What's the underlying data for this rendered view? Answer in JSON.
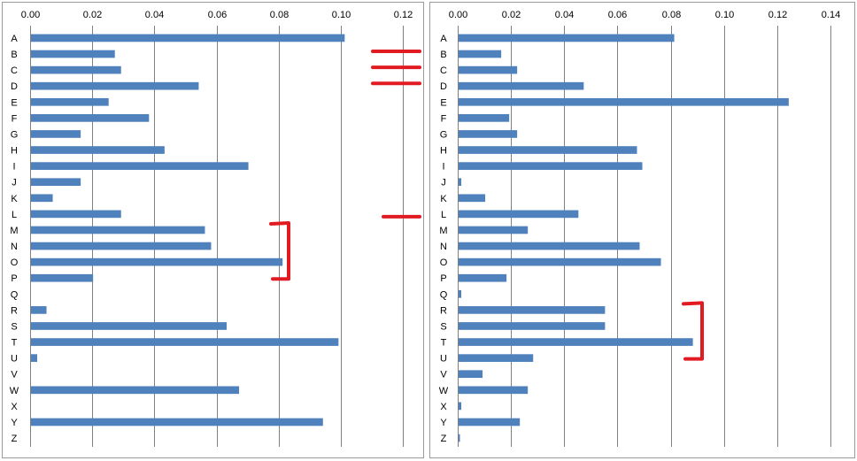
{
  "colors": {
    "bar": "#4f81bd",
    "annotation": "#e11b22",
    "grid": "#808080"
  },
  "chart_data": [
    {
      "type": "bar",
      "orientation": "horizontal",
      "categories": [
        "A",
        "B",
        "C",
        "D",
        "E",
        "F",
        "G",
        "H",
        "I",
        "J",
        "K",
        "L",
        "M",
        "N",
        "O",
        "P",
        "Q",
        "R",
        "S",
        "T",
        "U",
        "V",
        "W",
        "X",
        "Y",
        "Z"
      ],
      "values": [
        0.101,
        0.027,
        0.029,
        0.054,
        0.025,
        0.038,
        0.016,
        0.043,
        0.07,
        0.016,
        0.007,
        0.029,
        0.056,
        0.058,
        0.081,
        0.02,
        0.0,
        0.005,
        0.063,
        0.099,
        0.002,
        0.0,
        0.067,
        0.0,
        0.094,
        0.0
      ],
      "xlim": [
        0,
        0.12
      ],
      "ticks": [
        "0.00",
        "0.02",
        "0.04",
        "0.06",
        "0.08",
        "0.10",
        "0.12"
      ],
      "grid": true,
      "bracket": {
        "from": "M",
        "to": "P"
      }
    },
    {
      "type": "bar",
      "orientation": "horizontal",
      "categories": [
        "A",
        "B",
        "C",
        "D",
        "E",
        "F",
        "G",
        "H",
        "I",
        "J",
        "K",
        "L",
        "M",
        "N",
        "O",
        "P",
        "Q",
        "R",
        "S",
        "T",
        "U",
        "V",
        "W",
        "X",
        "Y",
        "Z"
      ],
      "values": [
        0.081,
        0.016,
        0.022,
        0.047,
        0.124,
        0.019,
        0.022,
        0.067,
        0.069,
        0.001,
        0.01,
        0.045,
        0.026,
        0.068,
        0.076,
        0.018,
        0.001,
        0.055,
        0.055,
        0.088,
        0.028,
        0.009,
        0.026,
        0.001,
        0.023,
        0.0005
      ],
      "xlim": [
        0,
        0.14
      ],
      "ticks": [
        "0.00",
        "0.02",
        "0.04",
        "0.06",
        "0.08",
        "0.10",
        "0.12",
        "0.14"
      ],
      "grid": true,
      "bracket": {
        "from": "R",
        "to": "U"
      }
    }
  ],
  "annotations": {
    "dashes_between_panels": [
      "B",
      "C",
      "D",
      "L"
    ]
  }
}
